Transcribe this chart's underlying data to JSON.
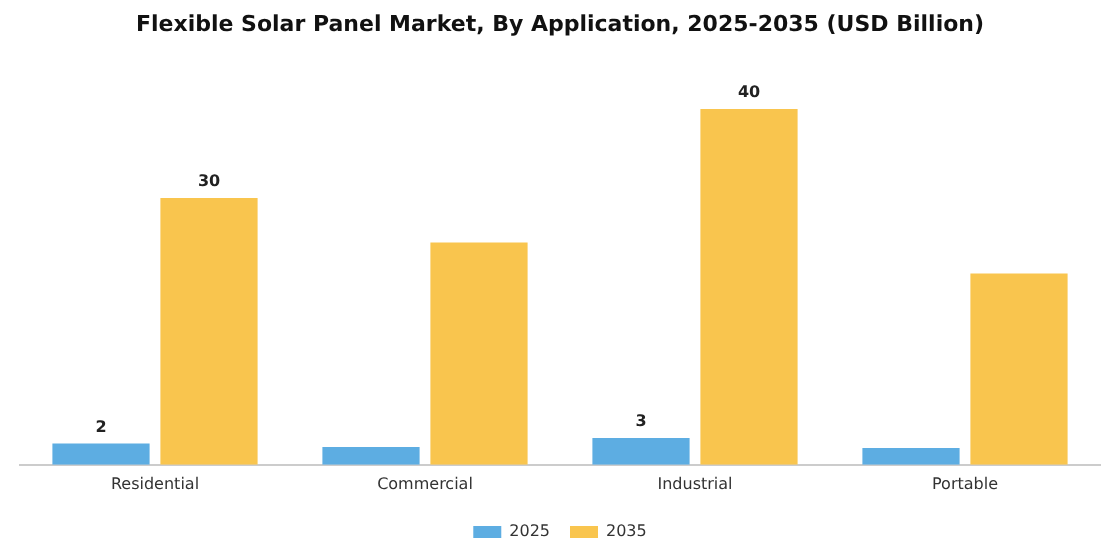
{
  "chart_data": {
    "type": "bar",
    "title": "Flexible Solar Panel Market, By Application, 2025-2035 (USD Billion)",
    "categories": [
      "Residential",
      "Commercial",
      "Industrial",
      "Portable"
    ],
    "series": [
      {
        "name": "2025",
        "color": "#5dade2",
        "values": [
          2.4,
          2.0,
          3.0,
          1.9
        ],
        "value_labels": [
          "2",
          null,
          "3",
          null
        ]
      },
      {
        "name": "2035",
        "color": "#f9c54e",
        "values": [
          30,
          25,
          40,
          21.5
        ],
        "value_labels": [
          "30",
          null,
          "40",
          null
        ]
      }
    ],
    "grid": false,
    "legend": "bottom",
    "tick_labels": "x"
  }
}
